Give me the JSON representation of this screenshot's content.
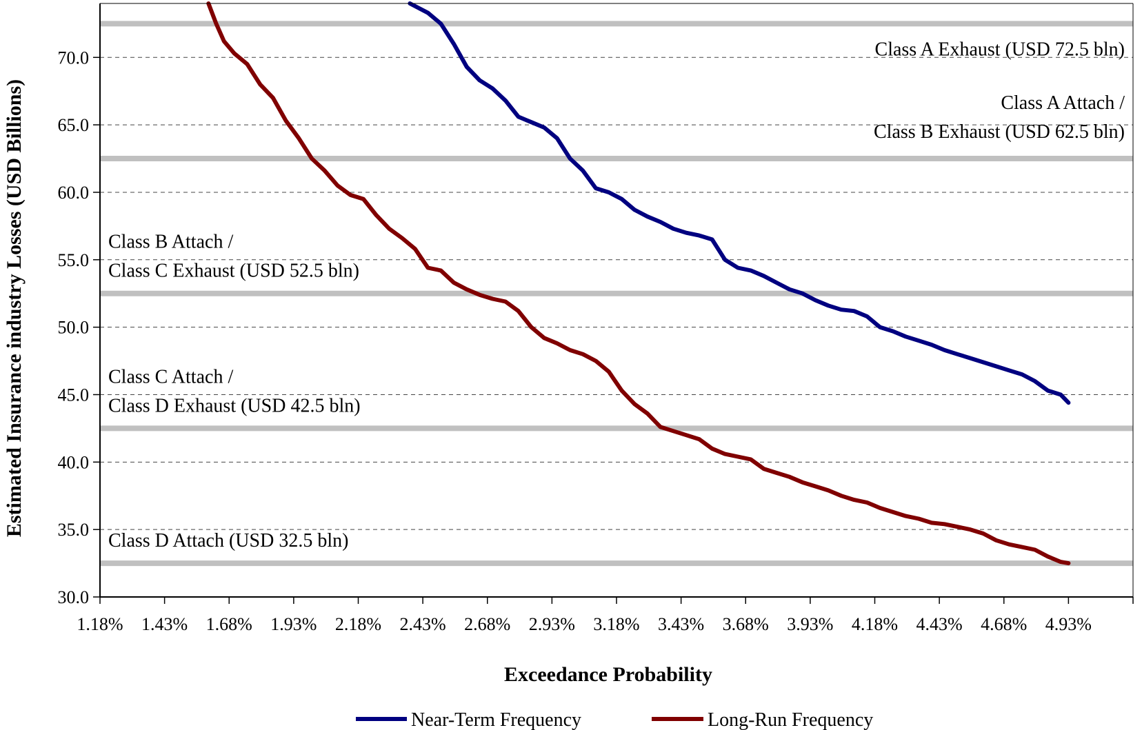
{
  "chart_data": {
    "type": "line",
    "title": "",
    "xlabel": "Exceedance Probability",
    "ylabel": "Estimated Insurance industry Losses (USD Billions)",
    "x_ticks": [
      "1.18%",
      "1.43%",
      "1.68%",
      "1.93%",
      "2.18%",
      "2.43%",
      "2.68%",
      "2.93%",
      "3.18%",
      "3.43%",
      "3.68%",
      "3.93%",
      "4.18%",
      "4.43%",
      "4.68%",
      "4.93%"
    ],
    "y_ticks": [
      "30.0",
      "35.0",
      "40.0",
      "45.0",
      "50.0",
      "55.0",
      "60.0",
      "65.0",
      "70.0"
    ],
    "xlim": [
      1.18,
      4.93
    ],
    "ylim": [
      30.0,
      74.0
    ],
    "grid": "horizontal dashed",
    "legend": "bottom",
    "thresholds": [
      {
        "value": 72.5,
        "lines": [
          "Class A Exhaust (USD 72.5 bln)"
        ]
      },
      {
        "value": 62.5,
        "lines": [
          "Class A Attach /",
          "Class B Exhaust (USD 62.5 bln)"
        ]
      },
      {
        "value": 52.5,
        "lines": [
          "Class B Attach /",
          "Class C Exhaust (USD 52.5 bln)"
        ]
      },
      {
        "value": 42.5,
        "lines": [
          "Class C Attach /",
          "Class D Exhaust (USD 42.5 bln)"
        ]
      },
      {
        "value": 32.5,
        "lines": [
          "Class D Attach (USD 32.5 bln)"
        ]
      }
    ],
    "series": [
      {
        "name": "Near-Term Frequency",
        "color": "#000080",
        "x": [
          2.38,
          2.45,
          2.5,
          2.55,
          2.6,
          2.65,
          2.7,
          2.75,
          2.8,
          2.85,
          2.9,
          2.95,
          3.0,
          3.05,
          3.1,
          3.15,
          3.2,
          3.25,
          3.3,
          3.35,
          3.4,
          3.45,
          3.5,
          3.55,
          3.6,
          3.65,
          3.7,
          3.75,
          3.8,
          3.85,
          3.9,
          3.95,
          4.0,
          4.05,
          4.1,
          4.15,
          4.2,
          4.25,
          4.3,
          4.35,
          4.4,
          4.45,
          4.5,
          4.55,
          4.6,
          4.65,
          4.7,
          4.75,
          4.8,
          4.85,
          4.9,
          4.93
        ],
        "values": [
          74.0,
          73.3,
          72.5,
          71.0,
          69.3,
          68.3,
          67.7,
          66.8,
          65.6,
          65.2,
          64.8,
          64.0,
          62.5,
          61.6,
          60.3,
          60.0,
          59.5,
          58.7,
          58.2,
          57.8,
          57.3,
          57.0,
          56.8,
          56.5,
          55.0,
          54.4,
          54.2,
          53.8,
          53.3,
          52.8,
          52.5,
          52.0,
          51.6,
          51.3,
          51.2,
          50.8,
          50.0,
          49.7,
          49.3,
          49.0,
          48.7,
          48.3,
          48.0,
          47.7,
          47.4,
          47.1,
          46.8,
          46.5,
          46.0,
          45.3,
          45.0,
          44.4
        ]
      },
      {
        "name": "Long-Run Frequency",
        "color": "#800000",
        "x": [
          1.6,
          1.63,
          1.66,
          1.7,
          1.75,
          1.8,
          1.85,
          1.9,
          1.95,
          2.0,
          2.05,
          2.1,
          2.15,
          2.2,
          2.25,
          2.3,
          2.35,
          2.4,
          2.45,
          2.5,
          2.55,
          2.6,
          2.65,
          2.7,
          2.75,
          2.8,
          2.85,
          2.9,
          2.95,
          3.0,
          3.05,
          3.1,
          3.15,
          3.2,
          3.25,
          3.3,
          3.35,
          3.4,
          3.45,
          3.5,
          3.55,
          3.6,
          3.65,
          3.7,
          3.75,
          3.8,
          3.85,
          3.9,
          3.95,
          4.0,
          4.05,
          4.1,
          4.15,
          4.2,
          4.25,
          4.3,
          4.35,
          4.4,
          4.45,
          4.5,
          4.55,
          4.6,
          4.65,
          4.7,
          4.75,
          4.8,
          4.85,
          4.9,
          4.93
        ],
        "values": [
          74.0,
          72.5,
          71.2,
          70.3,
          69.5,
          68.0,
          67.0,
          65.3,
          64.0,
          62.5,
          61.6,
          60.5,
          59.8,
          59.5,
          58.3,
          57.3,
          56.6,
          55.8,
          54.4,
          54.2,
          53.3,
          52.8,
          52.4,
          52.1,
          51.9,
          51.2,
          50.0,
          49.2,
          48.8,
          48.3,
          48.0,
          47.5,
          46.7,
          45.3,
          44.3,
          43.6,
          42.6,
          42.3,
          42.0,
          41.7,
          41.0,
          40.6,
          40.4,
          40.2,
          39.5,
          39.2,
          38.9,
          38.5,
          38.2,
          37.9,
          37.5,
          37.2,
          37.0,
          36.6,
          36.3,
          36.0,
          35.8,
          35.5,
          35.4,
          35.2,
          35.0,
          34.7,
          34.2,
          33.9,
          33.7,
          33.5,
          33.0,
          32.6,
          32.5
        ]
      }
    ]
  }
}
